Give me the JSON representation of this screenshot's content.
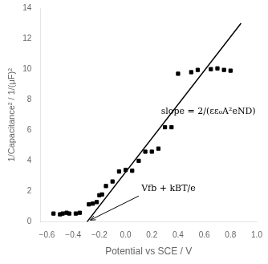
{
  "chart_data": {
    "type": "scatter",
    "x_label": "Potential vs SCE / V",
    "y_label": "1/Capacitance² / 1/(μF)²",
    "series": [
      {
        "type": "scatter",
        "marker": "square",
        "color": "black",
        "x": [
          -0.55,
          -0.5,
          -0.48,
          -0.45,
          -0.43,
          -0.38,
          -0.35,
          -0.28,
          -0.25,
          -0.22,
          -0.2,
          -0.18,
          -0.15,
          -0.1,
          -0.05,
          0.0,
          0.05,
          0.1,
          0.15,
          0.2,
          0.25,
          0.3,
          0.35,
          0.4,
          0.5,
          0.55,
          0.65,
          0.7,
          0.75,
          0.8
        ],
        "values": [
          0.55,
          0.5,
          0.55,
          0.6,
          0.55,
          0.55,
          0.6,
          1.15,
          1.2,
          1.3,
          1.75,
          1.8,
          2.35,
          2.65,
          3.3,
          3.4,
          3.35,
          4.0,
          4.6,
          4.6,
          4.8,
          6.2,
          6.2,
          9.7,
          9.8,
          9.95,
          10.0,
          10.05,
          9.95,
          9.9
        ]
      },
      {
        "type": "line",
        "line_style": "solid",
        "color": "black",
        "x": [
          -0.295,
          0.88
        ],
        "values": [
          0.0,
          13.0
        ]
      }
    ],
    "xlim": [
      -0.65,
      1.0
    ],
    "xticks": [
      {
        "value": -0.6,
        "label": "−0.6"
      },
      {
        "value": -0.4,
        "label": "−0.4"
      },
      {
        "value": -0.2,
        "label": "−0.2"
      },
      {
        "value": 0.0,
        "label": "0.0"
      },
      {
        "value": 0.2,
        "label": "0.2"
      },
      {
        "value": 0.4,
        "label": "0.4"
      },
      {
        "value": 0.6,
        "label": "0.6"
      },
      {
        "value": 0.8,
        "label": "0.8"
      },
      {
        "value": 1.0,
        "label": "1.0"
      }
    ],
    "ylim": [
      0,
      14
    ],
    "yticks": [
      0,
      2,
      4,
      6,
      8,
      10,
      12,
      14
    ],
    "grid": false,
    "annotations": [
      {
        "text": "Vfb + kBT/e",
        "x": 0.12,
        "y": 1.9,
        "arrow_from": [
          0.1,
          1.7
        ],
        "arrow_to": [
          -0.27,
          0.12
        ]
      },
      {
        "text": "slope = 2/(εε₀A²eND)",
        "x": 0.27,
        "y": 7.2
      }
    ]
  }
}
